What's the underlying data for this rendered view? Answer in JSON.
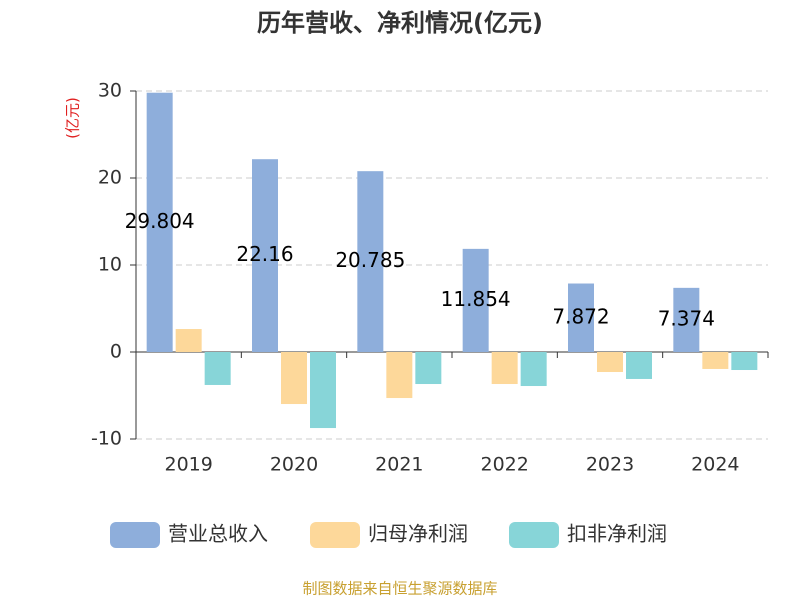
{
  "chart_data": {
    "type": "bar",
    "title": "历年营收、净利情况(亿元)",
    "y_label": "(亿元)",
    "categories": [
      "2019",
      "2020",
      "2021",
      "2022",
      "2023",
      "2024"
    ],
    "series": [
      {
        "name": "营业总收入",
        "color": "#8eaedb",
        "values": [
          29.804,
          22.16,
          20.785,
          11.854,
          7.872,
          7.374
        ],
        "show_labels": true
      },
      {
        "name": "归母净利润",
        "color": "#fdd89a",
        "values": [
          2.64,
          -5.98,
          -5.29,
          -3.68,
          -2.3,
          -1.95
        ]
      },
      {
        "name": "扣非净利润",
        "color": "#87d5d8",
        "values": [
          -3.79,
          -8.74,
          -3.68,
          -3.91,
          -3.1,
          -2.07
        ]
      }
    ],
    "ylim": [
      -10,
      30
    ],
    "yticks": [
      -10,
      0,
      10,
      20,
      30
    ],
    "grid": true,
    "footer": "制图数据来自恒生聚源数据库"
  }
}
